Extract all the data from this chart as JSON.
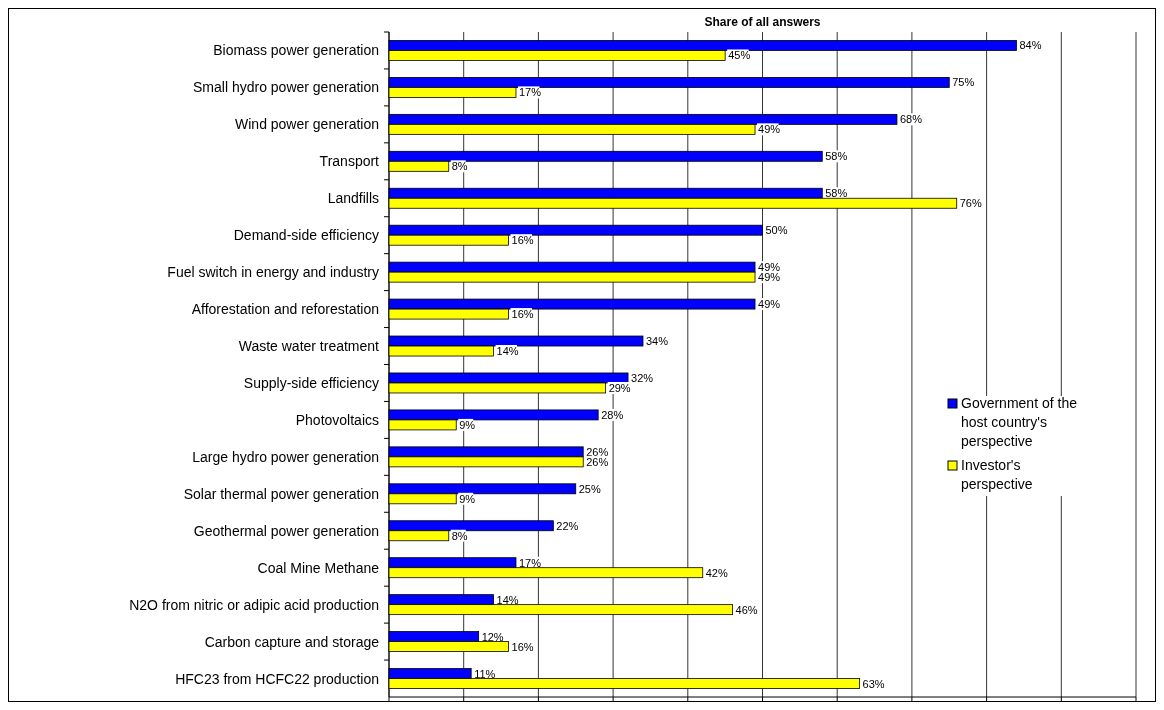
{
  "chart_data": {
    "type": "bar",
    "orientation": "horizontal",
    "title": "Share of all answers",
    "categories": [
      "Biomass power generation",
      "Small hydro power generation",
      "Wind power generation",
      "Transport",
      "Landfills",
      "Demand-side efficiency",
      "Fuel switch in energy and industry",
      "Afforestation and reforestation",
      "Waste water treatment",
      "Supply-side efficiency",
      "Photovoltaics",
      "Large hydro power generation",
      "Solar thermal power generation",
      "Geothermal power generation",
      "Coal Mine Methane",
      "N2O from nitric or adipic acid production",
      "Carbon capture and storage",
      "HFC23 from HCFC22 production"
    ],
    "series": [
      {
        "name": "Government of the host country's perspective",
        "color": "#0000ff",
        "values": [
          84,
          75,
          68,
          58,
          58,
          50,
          49,
          49,
          34,
          32,
          28,
          26,
          25,
          22,
          17,
          14,
          12,
          11
        ],
        "value_labels": [
          "84%",
          "75%",
          "68%",
          "58%",
          "58%",
          "50%",
          "49%",
          "49%",
          "34%",
          "32%",
          "28%",
          "26%",
          "25%",
          "22%",
          "17%",
          "14%",
          "12%",
          "11%"
        ]
      },
      {
        "name": "Investor's perspective",
        "color": "#ffff00",
        "values": [
          45,
          17,
          49,
          8,
          76,
          16,
          49,
          16,
          14,
          29,
          9,
          26,
          9,
          8,
          42,
          46,
          16,
          63
        ],
        "value_labels": [
          "45%",
          "17%",
          "49%",
          "8%",
          "76%",
          "16%",
          "49%",
          "16%",
          "14%",
          "29%",
          "9%",
          "26%",
          "9%",
          "8%",
          "42%",
          "46%",
          "16%",
          "63%"
        ]
      }
    ],
    "xlim": [
      0,
      100
    ],
    "xticks": [
      {
        "value": 0,
        "label": null
      },
      {
        "value": 10,
        "label": null
      },
      {
        "value": 20,
        "label": null
      },
      {
        "value": 30,
        "label": null
      },
      {
        "value": 40,
        "label": null
      },
      {
        "value": 50,
        "label": null
      },
      {
        "value": 60,
        "label": null
      },
      {
        "value": 70,
        "label": null
      },
      {
        "value": 80,
        "label": null
      },
      {
        "value": 90,
        "label": null
      },
      {
        "value": 100,
        "label": null
      }
    ],
    "tick_labels": "y",
    "grid": "x",
    "legend": "right"
  }
}
